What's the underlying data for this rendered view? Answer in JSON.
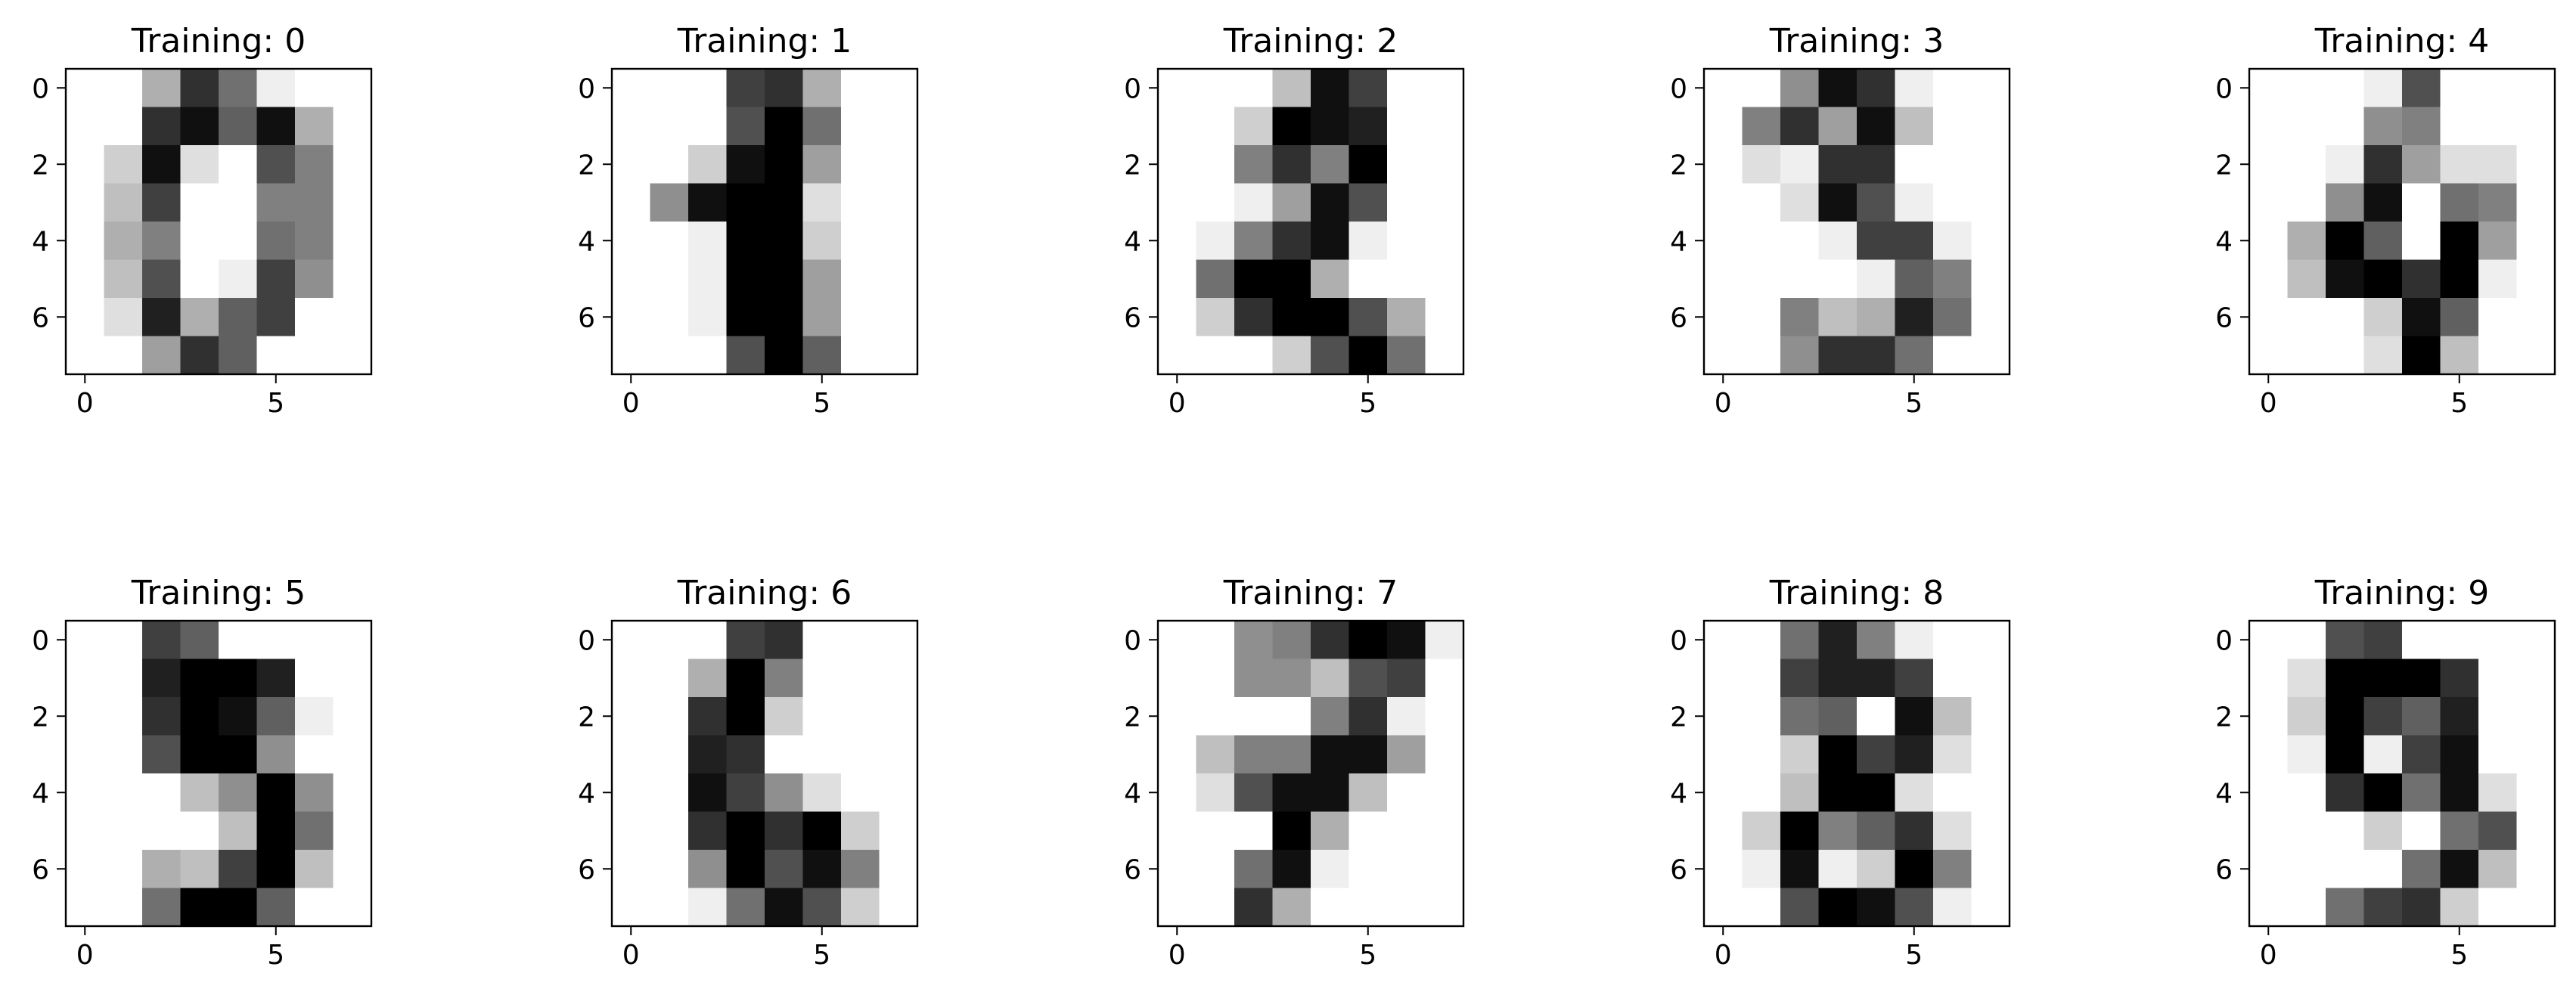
{
  "chart_data": [
    {
      "type": "heatmap",
      "title": "Training: 0",
      "colormap": "gray_r",
      "vmin": 0,
      "vmax": 16,
      "xticks": [
        0,
        5
      ],
      "yticks": [
        0,
        2,
        4,
        6
      ],
      "xlim": [
        -0.5,
        7.5
      ],
      "ylim": [
        7.5,
        -0.5
      ],
      "values": [
        [
          0,
          0,
          5,
          13,
          9,
          1,
          0,
          0
        ],
        [
          0,
          0,
          13,
          15,
          10,
          15,
          5,
          0
        ],
        [
          0,
          3,
          15,
          2,
          0,
          11,
          8,
          0
        ],
        [
          0,
          4,
          12,
          0,
          0,
          8,
          8,
          0
        ],
        [
          0,
          5,
          8,
          0,
          0,
          9,
          8,
          0
        ],
        [
          0,
          4,
          11,
          0,
          1,
          12,
          7,
          0
        ],
        [
          0,
          2,
          14,
          5,
          10,
          12,
          0,
          0
        ],
        [
          0,
          0,
          6,
          13,
          10,
          0,
          0,
          0
        ]
      ]
    },
    {
      "type": "heatmap",
      "title": "Training: 1",
      "colormap": "gray_r",
      "vmin": 0,
      "vmax": 16,
      "xticks": [
        0,
        5
      ],
      "yticks": [
        0,
        2,
        4,
        6
      ],
      "xlim": [
        -0.5,
        7.5
      ],
      "ylim": [
        7.5,
        -0.5
      ],
      "values": [
        [
          0,
          0,
          0,
          12,
          13,
          5,
          0,
          0
        ],
        [
          0,
          0,
          0,
          11,
          16,
          9,
          0,
          0
        ],
        [
          0,
          0,
          3,
          15,
          16,
          6,
          0,
          0
        ],
        [
          0,
          7,
          15,
          16,
          16,
          2,
          0,
          0
        ],
        [
          0,
          0,
          1,
          16,
          16,
          3,
          0,
          0
        ],
        [
          0,
          0,
          1,
          16,
          16,
          6,
          0,
          0
        ],
        [
          0,
          0,
          1,
          16,
          16,
          6,
          0,
          0
        ],
        [
          0,
          0,
          0,
          11,
          16,
          10,
          0,
          0
        ]
      ]
    },
    {
      "type": "heatmap",
      "title": "Training: 2",
      "colormap": "gray_r",
      "vmin": 0,
      "vmax": 16,
      "xticks": [
        0,
        5
      ],
      "yticks": [
        0,
        2,
        4,
        6
      ],
      "xlim": [
        -0.5,
        7.5
      ],
      "ylim": [
        7.5,
        -0.5
      ],
      "values": [
        [
          0,
          0,
          0,
          4,
          15,
          12,
          0,
          0
        ],
        [
          0,
          0,
          3,
          16,
          15,
          14,
          0,
          0
        ],
        [
          0,
          0,
          8,
          13,
          8,
          16,
          0,
          0
        ],
        [
          0,
          0,
          1,
          6,
          15,
          11,
          0,
          0
        ],
        [
          0,
          1,
          8,
          13,
          15,
          1,
          0,
          0
        ],
        [
          0,
          9,
          16,
          16,
          5,
          0,
          0,
          0
        ],
        [
          0,
          3,
          13,
          16,
          16,
          11,
          5,
          0
        ],
        [
          0,
          0,
          0,
          3,
          11,
          16,
          9,
          0
        ]
      ]
    },
    {
      "type": "heatmap",
      "title": "Training: 3",
      "colormap": "gray_r",
      "vmin": 0,
      "vmax": 16,
      "xticks": [
        0,
        5
      ],
      "yticks": [
        0,
        2,
        4,
        6
      ],
      "xlim": [
        -0.5,
        7.5
      ],
      "ylim": [
        7.5,
        -0.5
      ],
      "values": [
        [
          0,
          0,
          7,
          15,
          13,
          1,
          0,
          0
        ],
        [
          0,
          8,
          13,
          6,
          15,
          4,
          0,
          0
        ],
        [
          0,
          2,
          1,
          13,
          13,
          0,
          0,
          0
        ],
        [
          0,
          0,
          2,
          15,
          11,
          1,
          0,
          0
        ],
        [
          0,
          0,
          0,
          1,
          12,
          12,
          1,
          0
        ],
        [
          0,
          0,
          0,
          0,
          1,
          10,
          8,
          0
        ],
        [
          0,
          0,
          8,
          4,
          5,
          14,
          9,
          0
        ],
        [
          0,
          0,
          7,
          13,
          13,
          9,
          0,
          0
        ]
      ]
    },
    {
      "type": "heatmap",
      "title": "Training: 4",
      "colormap": "gray_r",
      "vmin": 0,
      "vmax": 16,
      "xticks": [
        0,
        5
      ],
      "yticks": [
        0,
        2,
        4,
        6
      ],
      "xlim": [
        -0.5,
        7.5
      ],
      "ylim": [
        7.5,
        -0.5
      ],
      "values": [
        [
          0,
          0,
          0,
          1,
          11,
          0,
          0,
          0
        ],
        [
          0,
          0,
          0,
          7,
          8,
          0,
          0,
          0
        ],
        [
          0,
          0,
          1,
          13,
          6,
          2,
          2,
          0
        ],
        [
          0,
          0,
          7,
          15,
          0,
          9,
          8,
          0
        ],
        [
          0,
          5,
          16,
          10,
          0,
          16,
          6,
          0
        ],
        [
          0,
          4,
          15,
          16,
          13,
          16,
          1,
          0
        ],
        [
          0,
          0,
          0,
          3,
          15,
          10,
          0,
          0
        ],
        [
          0,
          0,
          0,
          2,
          16,
          4,
          0,
          0
        ]
      ]
    },
    {
      "type": "heatmap",
      "title": "Training: 5",
      "colormap": "gray_r",
      "vmin": 0,
      "vmax": 16,
      "xticks": [
        0,
        5
      ],
      "yticks": [
        0,
        2,
        4,
        6
      ],
      "xlim": [
        -0.5,
        7.5
      ],
      "ylim": [
        7.5,
        -0.5
      ],
      "values": [
        [
          0,
          0,
          12,
          10,
          0,
          0,
          0,
          0
        ],
        [
          0,
          0,
          14,
          16,
          16,
          14,
          0,
          0
        ],
        [
          0,
          0,
          13,
          16,
          15,
          10,
          1,
          0
        ],
        [
          0,
          0,
          11,
          16,
          16,
          7,
          0,
          0
        ],
        [
          0,
          0,
          0,
          4,
          7,
          16,
          7,
          0
        ],
        [
          0,
          0,
          0,
          0,
          4,
          16,
          9,
          0
        ],
        [
          0,
          0,
          5,
          4,
          12,
          16,
          4,
          0
        ],
        [
          0,
          0,
          9,
          16,
          16,
          10,
          0,
          0
        ]
      ]
    },
    {
      "type": "heatmap",
      "title": "Training: 6",
      "colormap": "gray_r",
      "vmin": 0,
      "vmax": 16,
      "xticks": [
        0,
        5
      ],
      "yticks": [
        0,
        2,
        4,
        6
      ],
      "xlim": [
        -0.5,
        7.5
      ],
      "ylim": [
        7.5,
        -0.5
      ],
      "values": [
        [
          0,
          0,
          0,
          12,
          13,
          0,
          0,
          0
        ],
        [
          0,
          0,
          5,
          16,
          8,
          0,
          0,
          0
        ],
        [
          0,
          0,
          13,
          16,
          3,
          0,
          0,
          0
        ],
        [
          0,
          0,
          14,
          13,
          0,
          0,
          0,
          0
        ],
        [
          0,
          0,
          15,
          12,
          7,
          2,
          0,
          0
        ],
        [
          0,
          0,
          13,
          16,
          13,
          16,
          3,
          0
        ],
        [
          0,
          0,
          7,
          16,
          11,
          15,
          8,
          0
        ],
        [
          0,
          0,
          1,
          9,
          15,
          11,
          3,
          0
        ]
      ]
    },
    {
      "type": "heatmap",
      "title": "Training: 7",
      "colormap": "gray_r",
      "vmin": 0,
      "vmax": 16,
      "xticks": [
        0,
        5
      ],
      "yticks": [
        0,
        2,
        4,
        6
      ],
      "xlim": [
        -0.5,
        7.5
      ],
      "ylim": [
        7.5,
        -0.5
      ],
      "values": [
        [
          0,
          0,
          7,
          8,
          13,
          16,
          15,
          1
        ],
        [
          0,
          0,
          7,
          7,
          4,
          11,
          12,
          0
        ],
        [
          0,
          0,
          0,
          0,
          8,
          13,
          1,
          0
        ],
        [
          0,
          4,
          8,
          8,
          15,
          15,
          6,
          0
        ],
        [
          0,
          2,
          11,
          15,
          15,
          4,
          0,
          0
        ],
        [
          0,
          0,
          0,
          16,
          5,
          0,
          0,
          0
        ],
        [
          0,
          0,
          9,
          15,
          1,
          0,
          0,
          0
        ],
        [
          0,
          0,
          13,
          5,
          0,
          0,
          0,
          0
        ]
      ]
    },
    {
      "type": "heatmap",
      "title": "Training: 8",
      "colormap": "gray_r",
      "vmin": 0,
      "vmax": 16,
      "xticks": [
        0,
        5
      ],
      "yticks": [
        0,
        2,
        4,
        6
      ],
      "xlim": [
        -0.5,
        7.5
      ],
      "ylim": [
        7.5,
        -0.5
      ],
      "values": [
        [
          0,
          0,
          9,
          14,
          8,
          1,
          0,
          0
        ],
        [
          0,
          0,
          12,
          14,
          14,
          12,
          0,
          0
        ],
        [
          0,
          0,
          9,
          10,
          0,
          15,
          4,
          0
        ],
        [
          0,
          0,
          3,
          16,
          12,
          14,
          2,
          0
        ],
        [
          0,
          0,
          4,
          16,
          16,
          2,
          0,
          0
        ],
        [
          0,
          3,
          16,
          8,
          10,
          13,
          2,
          0
        ],
        [
          0,
          1,
          15,
          1,
          3,
          16,
          8,
          0
        ],
        [
          0,
          0,
          11,
          16,
          15,
          11,
          1,
          0
        ]
      ]
    },
    {
      "type": "heatmap",
      "title": "Training: 9",
      "colormap": "gray_r",
      "vmin": 0,
      "vmax": 16,
      "xticks": [
        0,
        5
      ],
      "yticks": [
        0,
        2,
        4,
        6
      ],
      "xlim": [
        -0.5,
        7.5
      ],
      "ylim": [
        7.5,
        -0.5
      ],
      "values": [
        [
          0,
          0,
          11,
          12,
          0,
          0,
          0,
          0
        ],
        [
          0,
          2,
          16,
          16,
          16,
          13,
          0,
          0
        ],
        [
          0,
          3,
          16,
          12,
          10,
          14,
          0,
          0
        ],
        [
          0,
          1,
          16,
          1,
          12,
          15,
          0,
          0
        ],
        [
          0,
          0,
          13,
          16,
          9,
          15,
          2,
          0
        ],
        [
          0,
          0,
          0,
          3,
          0,
          9,
          11,
          0
        ],
        [
          0,
          0,
          0,
          0,
          9,
          15,
          4,
          0
        ],
        [
          0,
          0,
          9,
          12,
          13,
          3,
          0,
          0
        ]
      ]
    }
  ]
}
